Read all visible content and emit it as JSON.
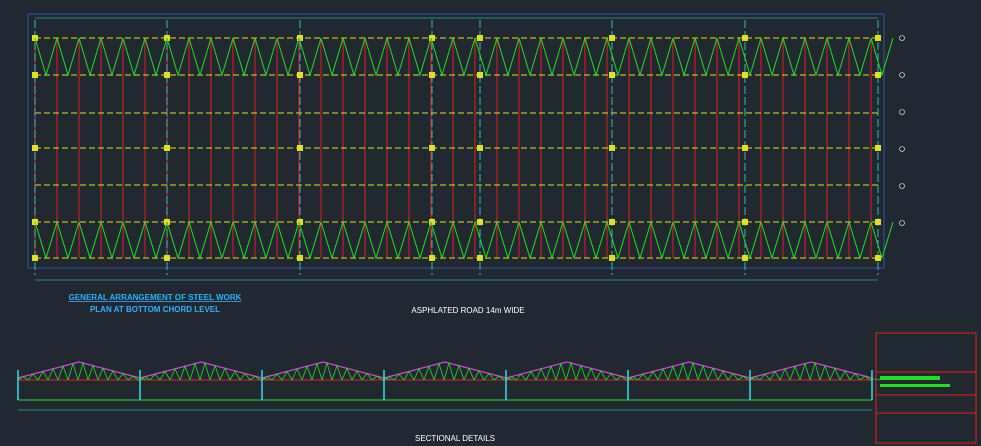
{
  "plan": {
    "title_line1": "GENERAL ARRANGEMENT OF STEEL WORK",
    "title_line2": "PLAN AT BOTTOM CHORD LEVEL"
  },
  "road_label": "ASPHLATED ROAD 14m WIDE",
  "section": {
    "title": "SECTIONAL DETAILS"
  }
}
